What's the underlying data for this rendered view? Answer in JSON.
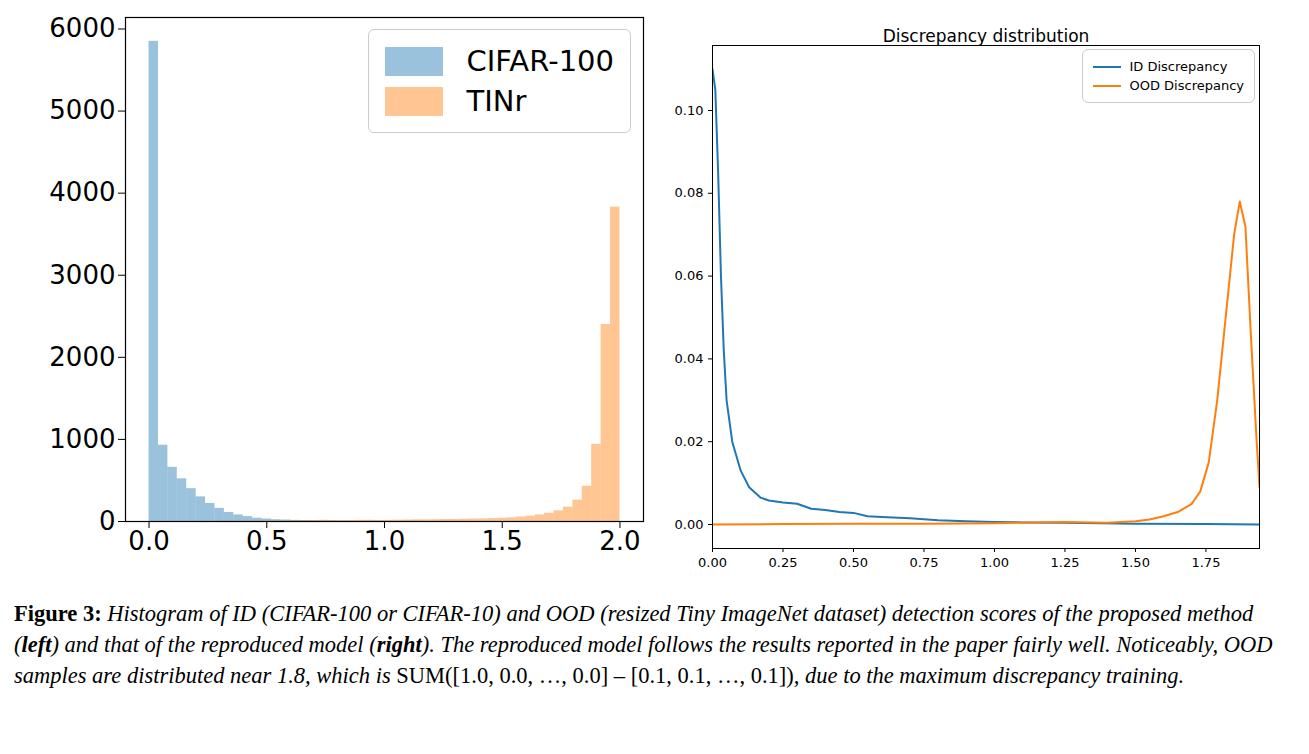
{
  "chart_data": [
    {
      "type": "histogram",
      "bins": [
        0.0,
        0.04,
        0.08,
        0.12,
        0.16,
        0.2,
        0.24,
        0.28,
        0.32,
        0.36,
        0.4,
        0.44,
        0.48,
        0.52,
        0.56,
        0.6,
        0.64,
        0.68,
        0.72,
        0.76,
        0.8,
        0.84,
        0.88,
        0.92,
        0.96,
        1.0,
        1.04,
        1.08,
        1.12,
        1.16,
        1.2,
        1.24,
        1.28,
        1.32,
        1.36,
        1.4,
        1.44,
        1.48,
        1.52,
        1.56,
        1.6,
        1.64,
        1.68,
        1.72,
        1.76,
        1.8,
        1.84,
        1.88,
        1.92,
        1.96,
        2.0
      ],
      "series": [
        {
          "name": "CIFAR-100",
          "color": "#1f77b4",
          "values": [
            5850,
            930,
            660,
            520,
            400,
            300,
            220,
            160,
            110,
            80,
            60,
            40,
            30,
            22,
            18,
            14,
            12,
            10,
            8,
            8,
            6,
            6,
            5,
            5,
            4,
            4,
            3,
            3,
            3,
            2,
            2,
            2,
            2,
            2,
            1,
            1,
            1,
            1,
            1,
            1,
            1,
            1,
            0,
            0,
            0,
            0,
            0,
            0,
            0,
            0
          ]
        },
        {
          "name": "TINr",
          "color": "#ff7f0e",
          "values": [
            0,
            0,
            0,
            1,
            1,
            2,
            2,
            3,
            3,
            4,
            5,
            5,
            6,
            7,
            8,
            9,
            10,
            12,
            15,
            12,
            10,
            12,
            14,
            15,
            12,
            14,
            16,
            18,
            20,
            20,
            22,
            25,
            25,
            28,
            30,
            32,
            35,
            40,
            45,
            55,
            65,
            80,
            100,
            130,
            175,
            260,
            430,
            940,
            2400,
            3830
          ]
        }
      ],
      "xlim": [
        -0.1,
        2.1
      ],
      "xticks": [
        {
          "value": 0,
          "label": "0.0"
        },
        {
          "value": 0.5,
          "label": "0.5"
        },
        {
          "value": 1,
          "label": "1.0"
        },
        {
          "value": 1.5,
          "label": "1.5"
        },
        {
          "value": 2,
          "label": "2.0"
        }
      ],
      "ylim": [
        0,
        6140
      ],
      "yticks": [
        0,
        1000,
        2000,
        3000,
        4000,
        5000,
        6000
      ],
      "grid": false,
      "legend": "upper right"
    },
    {
      "type": "line",
      "title": "Discrepancy distribution",
      "series": [
        {
          "name": "ID Discrepancy",
          "color": "#1f77b4",
          "x": [
            0,
            0.01,
            0.02,
            0.03,
            0.04,
            0.05,
            0.07,
            0.1,
            0.13,
            0.17,
            0.2,
            0.25,
            0.3,
            0.35,
            0.4,
            0.45,
            0.5,
            0.55,
            0.6,
            0.7,
            0.8,
            0.9,
            1.0,
            1.1,
            1.25,
            1.5,
            1.75,
            1.94
          ],
          "values": [
            0.11,
            0.105,
            0.085,
            0.06,
            0.042,
            0.03,
            0.02,
            0.013,
            0.009,
            0.0065,
            0.0058,
            0.0053,
            0.005,
            0.0038,
            0.0035,
            0.003,
            0.0028,
            0.002,
            0.0018,
            0.0015,
            0.001,
            0.0008,
            0.0006,
            0.0005,
            0.0004,
            0.0002,
            0.0001,
            0.0
          ]
        },
        {
          "name": "OOD Discrepancy",
          "color": "#ff7f0e",
          "x": [
            0,
            0.25,
            0.5,
            0.75,
            1.0,
            1.25,
            1.4,
            1.5,
            1.55,
            1.6,
            1.65,
            1.7,
            1.73,
            1.76,
            1.79,
            1.82,
            1.85,
            1.87,
            1.89,
            1.91,
            1.93,
            1.94
          ],
          "values": [
            0,
            0.0001,
            0.0002,
            0.0002,
            0.0003,
            0.0006,
            0.0004,
            0.0008,
            0.0012,
            0.002,
            0.003,
            0.005,
            0.008,
            0.015,
            0.03,
            0.05,
            0.07,
            0.078,
            0.072,
            0.045,
            0.02,
            0.009
          ]
        }
      ],
      "xlim": [
        0,
        1.94
      ],
      "xticks": [
        {
          "value": 0,
          "label": "0.00"
        },
        {
          "value": 0.25,
          "label": "0.25"
        },
        {
          "value": 0.5,
          "label": "0.50"
        },
        {
          "value": 0.75,
          "label": "0.75"
        },
        {
          "value": 1,
          "label": "1.00"
        },
        {
          "value": 1.25,
          "label": "1.25"
        },
        {
          "value": 1.5,
          "label": "1.50"
        },
        {
          "value": 1.75,
          "label": "1.75"
        }
      ],
      "ylim": [
        -0.0058,
        0.1157
      ],
      "yticks": [
        {
          "value": 0,
          "label": "0.00"
        },
        {
          "value": 0.02,
          "label": "0.02"
        },
        {
          "value": 0.04,
          "label": "0.04"
        },
        {
          "value": 0.06,
          "label": "0.06"
        },
        {
          "value": 0.08,
          "label": "0.08"
        },
        {
          "value": 0.1,
          "label": "0.10"
        }
      ],
      "grid": false,
      "legend": "upper right"
    }
  ],
  "caption": [
    {
      "text": "Figure 3:",
      "style": "bold"
    },
    {
      "text": " Histogram of ID (CIFAR-100 or CIFAR-10) and OOD (resized Tiny ImageNet dataset) detection scores of the proposed method (",
      "style": "italic"
    },
    {
      "text": "left",
      "style": "bold-italic"
    },
    {
      "text": ") and that of the reproduced model (",
      "style": "italic"
    },
    {
      "text": "right",
      "style": "bold-italic"
    },
    {
      "text": "). The reproduced model follows the results reported in the paper fairly well. Noticeably, OOD samples are distributed near 1.8, which is ",
      "style": "italic"
    },
    {
      "text": "SUM([1.0, 0.0, …, 0.0] – [0.1, 0.1, …, 0.1])",
      "style": "normal"
    },
    {
      "text": ", due to the maximum discrepancy training.",
      "style": "italic"
    }
  ]
}
